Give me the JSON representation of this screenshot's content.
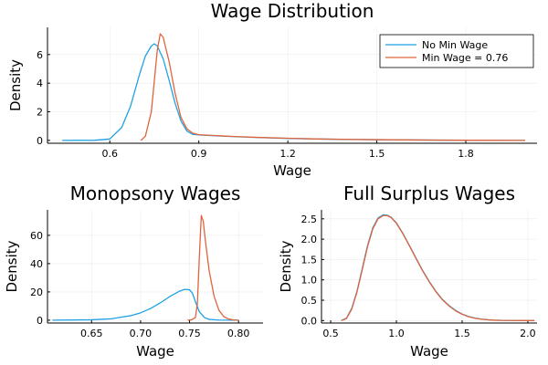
{
  "colors": {
    "series1": "#1ea1e6",
    "series2": "#e0643c"
  },
  "chart_data": [
    {
      "type": "line",
      "title": "Wage Distribution",
      "xlabel": "Wage",
      "ylabel": "Density",
      "xlim": [
        0.39,
        2.04
      ],
      "ylim": [
        -0.2,
        7.9
      ],
      "xticks": [
        0.6,
        0.9,
        1.2,
        1.5,
        1.8
      ],
      "xtick_labels": [
        "0.6",
        "0.9",
        "1.2",
        "1.5",
        "1.8"
      ],
      "yticks": [
        0,
        2,
        4,
        6
      ],
      "ytick_labels": [
        "0",
        "2",
        "4",
        "6"
      ],
      "grid": true,
      "legend": "top-right",
      "series": [
        {
          "name": "No Min Wage",
          "color": "#1ea1e6",
          "x": [
            0.44,
            0.55,
            0.6,
            0.64,
            0.67,
            0.7,
            0.72,
            0.74,
            0.75,
            0.76,
            0.78,
            0.8,
            0.82,
            0.84,
            0.86,
            0.88,
            0.9,
            0.95,
            1.0,
            1.1,
            1.2,
            1.3,
            1.4,
            1.5,
            1.6,
            1.7,
            1.8,
            1.9,
            2.0
          ],
          "y": [
            0,
            0.01,
            0.1,
            0.9,
            2.4,
            4.6,
            5.9,
            6.6,
            6.75,
            6.6,
            5.7,
            4.2,
            2.6,
            1.35,
            0.65,
            0.42,
            0.38,
            0.33,
            0.28,
            0.2,
            0.14,
            0.1,
            0.07,
            0.05,
            0.035,
            0.02,
            0.01,
            0.005,
            0.0
          ]
        },
        {
          "name": "Min Wage = 0.76",
          "color": "#e0643c",
          "x": [
            0.705,
            0.72,
            0.74,
            0.76,
            0.77,
            0.78,
            0.8,
            0.82,
            0.84,
            0.86,
            0.88,
            0.9,
            0.95,
            1.0,
            1.1,
            1.2,
            1.3,
            1.4,
            1.5,
            1.6,
            1.7,
            1.8,
            1.9,
            2.0
          ],
          "y": [
            0.0,
            0.3,
            2.0,
            6.3,
            7.45,
            7.2,
            5.5,
            3.3,
            1.6,
            0.8,
            0.5,
            0.4,
            0.34,
            0.29,
            0.21,
            0.15,
            0.1,
            0.07,
            0.05,
            0.035,
            0.02,
            0.01,
            0.005,
            0.0
          ]
        }
      ]
    },
    {
      "type": "line",
      "title": "Monopsony Wages",
      "xlabel": "Wage",
      "ylabel": "Density",
      "xlim": [
        0.605,
        0.825
      ],
      "ylim": [
        -2,
        78
      ],
      "xticks": [
        0.65,
        0.7,
        0.75,
        0.8
      ],
      "xtick_labels": [
        "0.65",
        "0.70",
        "0.75",
        "0.80"
      ],
      "yticks": [
        0,
        20,
        40,
        60
      ],
      "ytick_labels": [
        "0",
        "20",
        "40",
        "60"
      ],
      "grid": true,
      "series": [
        {
          "name": "No Min Wage",
          "color": "#1ea1e6",
          "x": [
            0.61,
            0.65,
            0.67,
            0.69,
            0.7,
            0.71,
            0.72,
            0.73,
            0.74,
            0.745,
            0.75,
            0.753,
            0.756,
            0.76,
            0.765,
            0.77,
            0.78,
            0.8
          ],
          "y": [
            0,
            0.3,
            1.0,
            3.2,
            5.2,
            8.2,
            12.2,
            16.8,
            20.6,
            21.8,
            21.5,
            19.0,
            13.0,
            6.0,
            2.0,
            0.6,
            0.1,
            0
          ]
        },
        {
          "name": "Min Wage = 0.76",
          "color": "#e0643c",
          "x": [
            0.748,
            0.752,
            0.756,
            0.758,
            0.76,
            0.762,
            0.764,
            0.766,
            0.77,
            0.775,
            0.78,
            0.785,
            0.79,
            0.795,
            0.8
          ],
          "y": [
            0,
            0.3,
            1.8,
            12,
            45,
            74,
            70,
            57,
            35,
            17,
            7,
            2.5,
            0.8,
            0.2,
            0
          ]
        }
      ]
    },
    {
      "type": "line",
      "title": "Full Surplus Wages",
      "xlabel": "Wage",
      "ylabel": "Density",
      "xlim": [
        0.43,
        2.07
      ],
      "ylim": [
        -0.06,
        2.72
      ],
      "xticks": [
        0.5,
        1.0,
        1.5,
        2.0
      ],
      "xtick_labels": [
        "0.5",
        "1.0",
        "1.5",
        "2.0"
      ],
      "yticks": [
        0,
        0.5,
        1.0,
        1.5,
        2.0,
        2.5
      ],
      "ytick_labels": [
        "0.0",
        "0.5",
        "1.0",
        "1.5",
        "2.0",
        "2.5"
      ],
      "grid": true,
      "series": [
        {
          "name": "No Min Wage",
          "color": "#1ea1e6",
          "x": [
            0.58,
            0.62,
            0.66,
            0.7,
            0.74,
            0.78,
            0.82,
            0.86,
            0.9,
            0.93,
            0.96,
            1.0,
            1.05,
            1.1,
            1.15,
            1.2,
            1.25,
            1.3,
            1.35,
            1.4,
            1.45,
            1.5,
            1.55,
            1.6,
            1.65,
            1.7,
            1.75,
            1.8,
            1.9,
            2.0,
            2.05
          ],
          "y": [
            0,
            0.06,
            0.3,
            0.72,
            1.28,
            1.84,
            2.28,
            2.52,
            2.6,
            2.59,
            2.54,
            2.4,
            2.14,
            1.84,
            1.53,
            1.23,
            0.96,
            0.72,
            0.52,
            0.37,
            0.25,
            0.16,
            0.1,
            0.06,
            0.035,
            0.02,
            0.01,
            0.005,
            0.001,
            0,
            0
          ]
        },
        {
          "name": "Min Wage = 0.76",
          "color": "#e0643c",
          "x": [
            0.58,
            0.62,
            0.66,
            0.7,
            0.74,
            0.78,
            0.82,
            0.86,
            0.9,
            0.93,
            0.96,
            1.0,
            1.05,
            1.1,
            1.15,
            1.2,
            1.25,
            1.3,
            1.35,
            1.4,
            1.45,
            1.5,
            1.55,
            1.6,
            1.65,
            1.7,
            1.75,
            1.8,
            1.9,
            2.0,
            2.05
          ],
          "y": [
            0,
            0.05,
            0.28,
            0.7,
            1.25,
            1.81,
            2.25,
            2.5,
            2.58,
            2.58,
            2.53,
            2.39,
            2.13,
            1.83,
            1.52,
            1.22,
            0.95,
            0.71,
            0.51,
            0.36,
            0.24,
            0.155,
            0.095,
            0.055,
            0.032,
            0.018,
            0.009,
            0.004,
            0.001,
            0,
            0
          ]
        }
      ]
    }
  ]
}
